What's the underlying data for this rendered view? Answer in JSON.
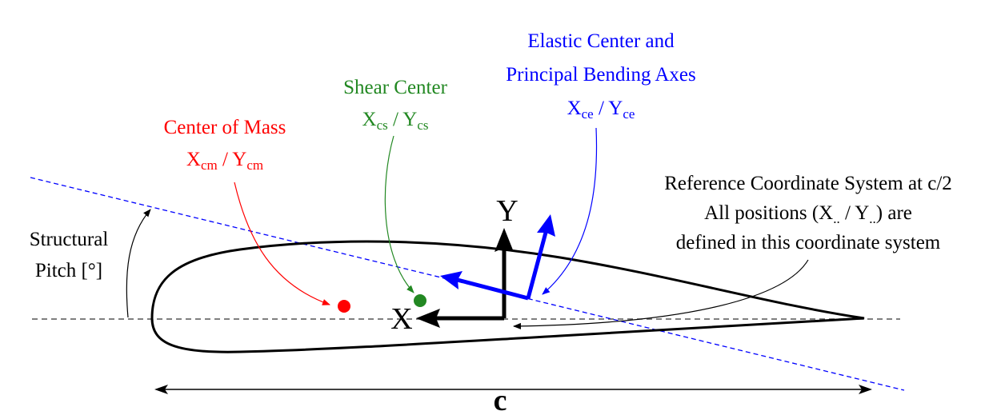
{
  "colors": {
    "black": "#000000",
    "mass": "#ff0000",
    "shear": "#228822",
    "elastic": "#0000ff"
  },
  "labels": {
    "mass_title": "Center of Mass",
    "mass_x": "X",
    "mass_x_sub": "cm",
    "mass_sep": " / Y",
    "mass_y_sub": "cm",
    "shear_title": "Shear Center",
    "shear_x": "X",
    "shear_x_sub": "cs",
    "shear_sep": " / Y",
    "shear_y_sub": "cs",
    "elastic_line1": "Elastic Center and",
    "elastic_line2": "Principal Bending Axes",
    "elastic_x": "X",
    "elastic_x_sub": "ce",
    "elastic_sep": " / Y",
    "elastic_y_sub": "ce",
    "ref_line1": "Reference Coordinate System at c/2",
    "ref_line2_a": "All positions (X",
    "ref_line2_sub1": "..",
    "ref_line2_b": " / Y",
    "ref_line2_sub2": "..",
    "ref_line2_c": ") are",
    "ref_line3": "defined in this coordinate system",
    "pitch_line1": "Structural",
    "pitch_line2": "Pitch [°]",
    "axis_x": "X",
    "axis_y": "Y",
    "chord": "c"
  }
}
